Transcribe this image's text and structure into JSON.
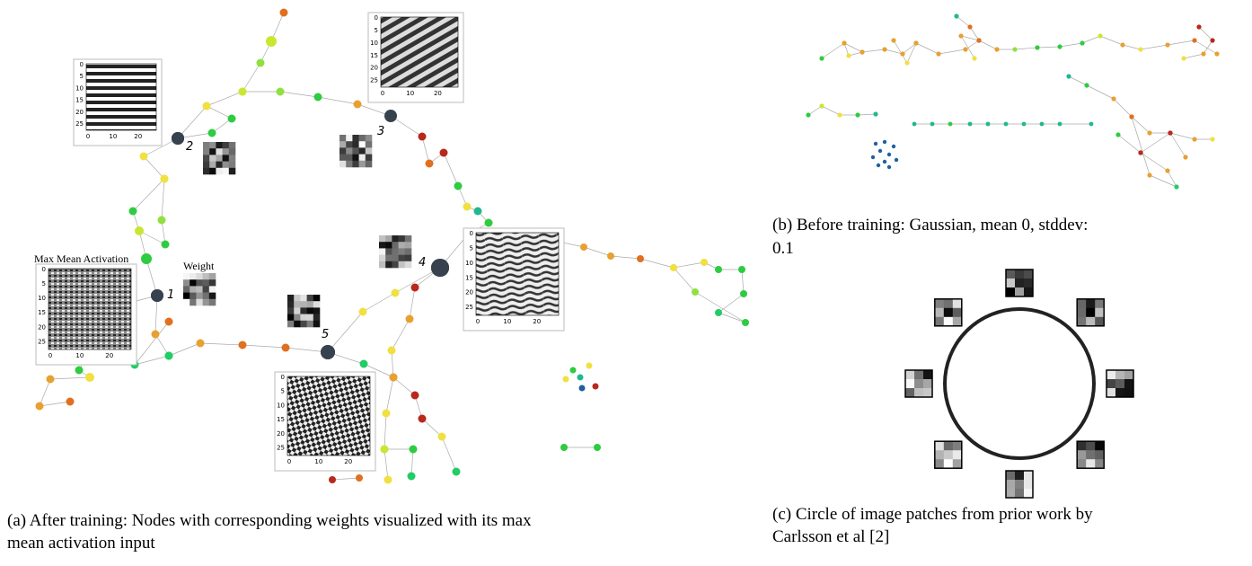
{
  "panel_a": {
    "caption_line1": "(a) After training: Nodes with corresponding weights visualized with its max",
    "caption_line2": "mean activation input",
    "max_mean_activation_label": "Max Mean Activation",
    "weight_label": "Weight",
    "node_labels": [
      "1",
      "2",
      "3",
      "4",
      "5"
    ]
  },
  "inset_axes": {
    "y_ticks": [
      "0",
      "5",
      "10",
      "15",
      "20",
      "25"
    ],
    "x_ticks": [
      "0",
      "10",
      "20"
    ]
  },
  "panel_b": {
    "caption_line1": "(b) Before training: Gaussian, mean 0, stddev:",
    "caption_line2": "0.1"
  },
  "panel_c": {
    "caption_line1": "(c) Circle of image patches from prior work by",
    "caption_line2": "Carlsson et al [2]"
  }
}
